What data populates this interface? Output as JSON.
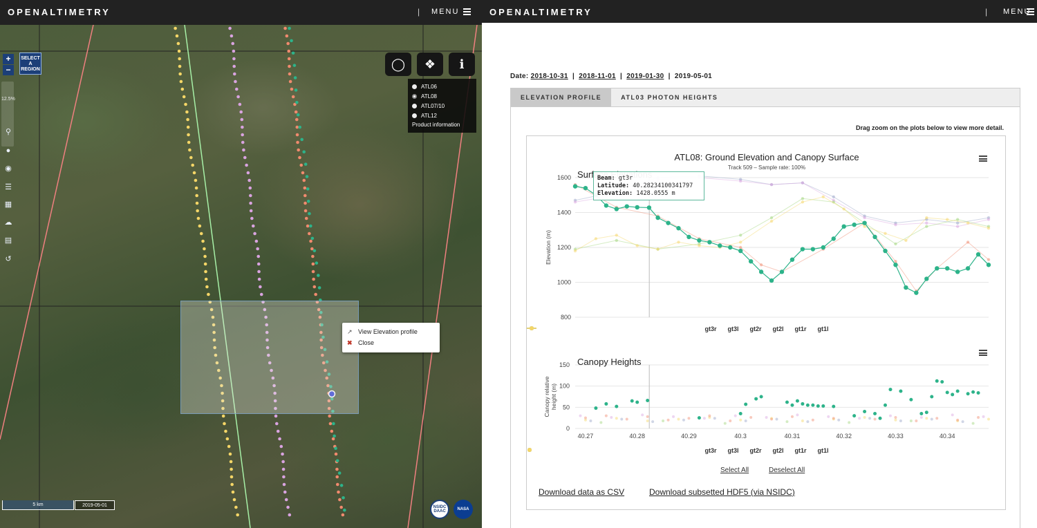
{
  "left_header": {
    "brand": "OPENALTIMETRY",
    "separator": "|",
    "menu_label": "MENU"
  },
  "right_header": {
    "brand": "OPENALTIMETRY",
    "separator": "|",
    "menu_label": "MENU"
  },
  "map": {
    "zoom_in": "+",
    "zoom_out": "−",
    "select_region_label": "SELECT A REGION",
    "zoom_percent": "12.5%",
    "tools": [
      "search-icon",
      "pin-icon",
      "target-icon",
      "list-icon",
      "calendar-icon",
      "cloud-icon",
      "layers-icon",
      "reset-icon"
    ],
    "product_legend": {
      "items": [
        "ATL06",
        "ATL08",
        "ATL07/10",
        "ATL12"
      ],
      "selected": "ATL08",
      "info_label": "Product information"
    },
    "context_menu": {
      "view_label": "View Elevation profile",
      "close_label": "Close"
    },
    "scale_label": "5 km",
    "date_label": "2019-05-01",
    "logos": [
      "NSIDC DAAC",
      "NASA"
    ]
  },
  "profile": {
    "dates": {
      "label": "Date:",
      "links": [
        "2018-10-31",
        "2018-11-01",
        "2019-01-30"
      ],
      "current": "2019-05-01",
      "separator": "|"
    },
    "tabs": [
      {
        "label": "ELEVATION PROFILE",
        "active": true
      },
      {
        "label": "ATL03 PHOTON HEIGHTS",
        "active": false
      }
    ],
    "drag_hint": "Drag zoom on the plots below to view more detail.",
    "select_all": "Select All",
    "deselect_all": "Deselect All",
    "download_csv": "Download data as CSV",
    "download_hdf5": "Download subsetted HDF5 (via NSIDC)"
  },
  "chart_data": [
    {
      "type": "line",
      "title": "ATL08: Ground Elevation and Canopy Surface",
      "subtitle": "Track 509 – Sample rate: 100%",
      "panel_label": "Surface Elevations",
      "xlabel": "",
      "ylabel": "Elevation (m)",
      "ylim": [
        800,
        1600
      ],
      "yticks": [
        800,
        1000,
        1200,
        1400,
        1600
      ],
      "xlim": [
        40.268,
        40.348
      ],
      "grid": true,
      "legend_position": "bottom",
      "tooltip": {
        "beam_label": "Beam:",
        "beam": "gt3r",
        "lat_label": "Latitude:",
        "lat": "40.28234100341797",
        "elev_label": "Elevation:",
        "elev": "1428.0555 m"
      },
      "series": [
        {
          "name": "gt3r",
          "color": "#2db38a",
          "x": [
            40.268,
            40.27,
            40.272,
            40.274,
            40.276,
            40.278,
            40.28,
            40.2823,
            40.284,
            40.286,
            40.288,
            40.29,
            40.292,
            40.294,
            40.296,
            40.298,
            40.3,
            40.302,
            40.304,
            40.306,
            40.308,
            40.31,
            40.312,
            40.314,
            40.316,
            40.318,
            40.32,
            40.322,
            40.324,
            40.326,
            40.328,
            40.33,
            40.332,
            40.334,
            40.336,
            40.338,
            40.34,
            40.342,
            40.344,
            40.346,
            40.348
          ],
          "y": [
            1550,
            1540,
            1500,
            1440,
            1420,
            1435,
            1430,
            1428,
            1370,
            1340,
            1310,
            1260,
            1240,
            1230,
            1210,
            1200,
            1180,
            1120,
            1060,
            1010,
            1060,
            1130,
            1190,
            1190,
            1200,
            1250,
            1320,
            1330,
            1340,
            1260,
            1180,
            1100,
            970,
            940,
            1020,
            1080,
            1080,
            1060,
            1080,
            1160,
            1100
          ]
        },
        {
          "name": "gt3l",
          "color": "#f08a6e",
          "x": [
            40.268,
            40.276,
            40.284,
            40.292,
            40.3,
            40.304,
            40.308,
            40.316,
            40.324,
            40.33,
            40.334,
            40.338,
            40.344,
            40.348
          ],
          "y": [
            1560,
            1430,
            1380,
            1250,
            1200,
            1100,
            1060,
            1190,
            1340,
            1120,
            950,
            1080,
            1230,
            1130
          ]
        },
        {
          "name": "gt2r",
          "color": "#9aa3c8",
          "x": [
            40.268,
            40.276,
            40.284,
            40.292,
            40.3,
            40.306,
            40.312,
            40.318,
            40.324,
            40.33,
            40.336,
            40.342,
            40.348
          ],
          "y": [
            1470,
            1520,
            1600,
            1610,
            1590,
            1560,
            1570,
            1490,
            1380,
            1340,
            1360,
            1340,
            1370
          ]
        },
        {
          "name": "gt2l",
          "color": "#d9a3e0",
          "x": [
            40.268,
            40.276,
            40.284,
            40.292,
            40.3,
            40.306,
            40.312,
            40.318,
            40.324,
            40.33,
            40.336,
            40.342,
            40.348
          ],
          "y": [
            1460,
            1500,
            1590,
            1600,
            1580,
            1560,
            1570,
            1470,
            1370,
            1330,
            1340,
            1320,
            1360
          ]
        },
        {
          "name": "gt1r",
          "color": "#9fd47a",
          "x": [
            40.268,
            40.276,
            40.284,
            40.292,
            40.3,
            40.306,
            40.312,
            40.318,
            40.324,
            40.33,
            40.336,
            40.342,
            40.348
          ],
          "y": [
            1190,
            1240,
            1190,
            1220,
            1270,
            1370,
            1480,
            1460,
            1340,
            1220,
            1320,
            1360,
            1320
          ]
        },
        {
          "name": "gt1l",
          "color": "#f5d667",
          "x": [
            40.268,
            40.272,
            40.276,
            40.28,
            40.284,
            40.288,
            40.292,
            40.296,
            40.3,
            40.306,
            40.312,
            40.316,
            40.32,
            40.324,
            40.328,
            40.332,
            40.336,
            40.34,
            40.344,
            40.348
          ],
          "y": [
            1180,
            1250,
            1270,
            1210,
            1190,
            1230,
            1210,
            1200,
            1230,
            1350,
            1460,
            1490,
            1420,
            1320,
            1280,
            1240,
            1370,
            1360,
            1340,
            1310
          ]
        }
      ]
    },
    {
      "type": "scatter",
      "title": "Canopy Heights",
      "xlabel": "",
      "ylabel": "Canopy relative height (m)",
      "ylim": [
        0,
        150
      ],
      "yticks": [
        0,
        50,
        100,
        150
      ],
      "xlim": [
        40.268,
        40.348
      ],
      "xticks": [
        40.27,
        40.28,
        40.29,
        40.3,
        40.31,
        40.32,
        40.33,
        40.34
      ],
      "grid": true,
      "legend_position": "bottom",
      "series": [
        {
          "name": "gt3r",
          "color": "#2db38a",
          "x": [
            40.272,
            40.274,
            40.276,
            40.279,
            40.28,
            40.282,
            40.292,
            40.3,
            40.301,
            40.303,
            40.304,
            40.309,
            40.31,
            40.311,
            40.312,
            40.313,
            40.314,
            40.315,
            40.316,
            40.318,
            40.322,
            40.324,
            40.326,
            40.327,
            40.328,
            40.329,
            40.331,
            40.333,
            40.335,
            40.336,
            40.337,
            40.338,
            40.339,
            40.34,
            40.341,
            40.342,
            40.344,
            40.345,
            40.346
          ],
          "y": [
            48,
            58,
            52,
            65,
            62,
            66,
            25,
            35,
            57,
            70,
            75,
            62,
            55,
            65,
            58,
            55,
            55,
            53,
            53,
            52,
            30,
            40,
            35,
            24,
            55,
            92,
            88,
            68,
            35,
            38,
            75,
            112,
            110,
            85,
            80,
            88,
            82,
            86,
            84
          ]
        },
        {
          "name": "gt3l",
          "color": "#f08a6e",
          "x": [
            40.27,
            40.274,
            40.278,
            40.282,
            40.286,
            40.29,
            40.294,
            40.298,
            40.302,
            40.306,
            40.31,
            40.314,
            40.318,
            40.322,
            40.326,
            40.33,
            40.334,
            40.338,
            40.342,
            40.346
          ],
          "y": [
            25,
            30,
            22,
            28,
            20,
            24,
            30,
            18,
            26,
            22,
            28,
            20,
            24,
            30,
            22,
            26,
            18,
            24,
            20,
            26
          ]
        },
        {
          "name": "gt2r",
          "color": "#9aa3c8",
          "x": [
            40.271,
            40.277,
            40.283,
            40.289,
            40.295,
            40.301,
            40.307,
            40.313,
            40.319,
            40.325,
            40.331,
            40.337,
            40.343
          ],
          "y": [
            18,
            22,
            16,
            20,
            24,
            18,
            22,
            16,
            20,
            24,
            18,
            22,
            16
          ]
        },
        {
          "name": "gt2l",
          "color": "#d9a3e0",
          "x": [
            40.269,
            40.275,
            40.281,
            40.287,
            40.293,
            40.299,
            40.305,
            40.311,
            40.317,
            40.323,
            40.329,
            40.335,
            40.341,
            40.347
          ],
          "y": [
            30,
            26,
            32,
            28,
            24,
            30,
            26,
            32,
            28,
            24,
            30,
            26,
            32,
            28
          ]
        },
        {
          "name": "gt1r",
          "color": "#9fd47a",
          "x": [
            40.273,
            40.285,
            40.297,
            40.309,
            40.321,
            40.333,
            40.345
          ],
          "y": [
            14,
            18,
            12,
            16,
            14,
            18,
            12
          ]
        },
        {
          "name": "gt1l",
          "color": "#f5d667",
          "x": [
            40.27,
            40.276,
            40.282,
            40.288,
            40.294,
            40.3,
            40.306,
            40.312,
            40.318,
            40.324,
            40.33,
            40.336,
            40.342,
            40.348
          ],
          "y": [
            20,
            24,
            18,
            22,
            26,
            20,
            24,
            18,
            22,
            26,
            20,
            24,
            18,
            22
          ]
        }
      ]
    }
  ]
}
